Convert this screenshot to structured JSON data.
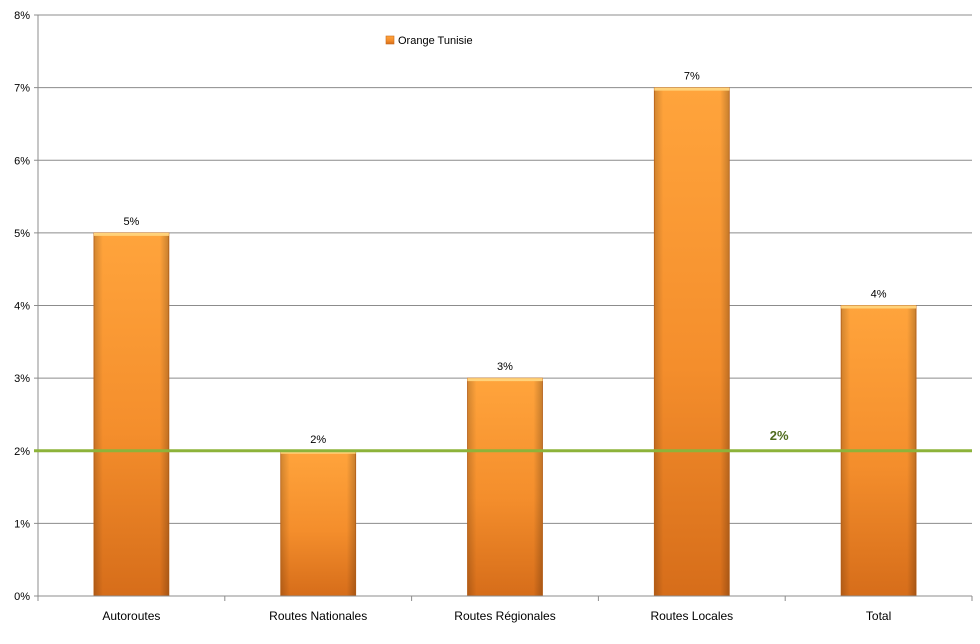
{
  "chart_data": {
    "type": "bar",
    "categories": [
      "Autoroutes",
      "Routes Nationales",
      "Routes Régionales",
      "Routes Locales",
      "Total"
    ],
    "series": [
      {
        "name": "Orange Tunisie",
        "values": [
          5,
          2,
          3,
          7,
          4
        ],
        "color": "#f7932a"
      }
    ],
    "data_labels": [
      "5%",
      "2%",
      "3%",
      "7%",
      "4%"
    ],
    "y_ticks": [
      "0%",
      "1%",
      "2%",
      "3%",
      "4%",
      "5%",
      "6%",
      "7%",
      "8%"
    ],
    "ylim": [
      0,
      8
    ],
    "y_unit": "%",
    "grid": true,
    "legend_position": "top-center",
    "reference_line": {
      "value": 2,
      "label": "2%",
      "color": "#8db33a"
    },
    "title": "",
    "xlabel": "",
    "ylabel": ""
  }
}
